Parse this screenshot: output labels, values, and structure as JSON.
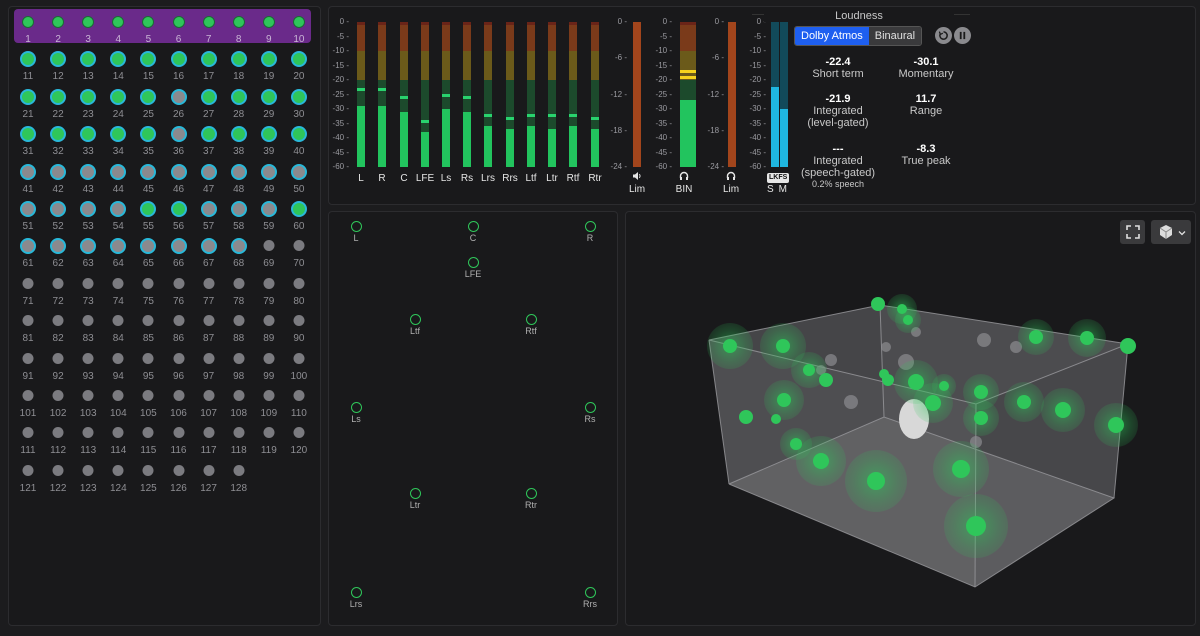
{
  "objects": {
    "selected": [
      1,
      2,
      3,
      4,
      5,
      6,
      7,
      8,
      9,
      10
    ],
    "active_green": [
      11,
      12,
      13,
      14,
      15,
      16,
      17,
      18,
      19,
      20,
      21,
      22,
      23,
      24,
      25,
      27,
      28,
      29,
      30,
      31,
      32,
      33,
      34,
      35,
      36,
      37,
      38,
      39,
      40,
      41,
      42,
      43,
      44,
      45,
      46,
      47,
      48,
      49,
      50,
      51,
      52,
      53,
      54,
      55,
      56,
      57,
      58,
      59,
      60,
      61,
      62,
      63,
      64,
      65,
      66,
      67,
      68
    ],
    "active_grey": [
      26,
      36,
      41,
      42,
      43,
      44,
      45,
      46,
      47,
      48,
      49,
      50,
      51,
      52,
      53,
      54,
      57,
      58,
      59,
      61,
      62,
      63,
      64,
      65,
      66,
      67,
      68
    ],
    "total": 128
  },
  "meters": {
    "scale": [
      "0",
      "-5",
      "-10",
      "-15",
      "-20",
      "-25",
      "-30",
      "-35",
      "-40",
      "-45",
      "-60"
    ],
    "channels": [
      {
        "label": "L",
        "level": -29,
        "peak": -23
      },
      {
        "label": "R",
        "level": -29,
        "peak": -23
      },
      {
        "label": "C",
        "level": -31,
        "peak": -26
      },
      {
        "label": "LFE",
        "level": -38,
        "peak": -34
      },
      {
        "label": "Ls",
        "level": -30,
        "peak": -25
      },
      {
        "label": "Rs",
        "level": -31,
        "peak": -26
      },
      {
        "label": "Lrs",
        "level": -36,
        "peak": -32
      },
      {
        "label": "Rrs",
        "level": -37,
        "peak": -33
      },
      {
        "label": "Ltf",
        "level": -36,
        "peak": -32
      },
      {
        "label": "Ltr",
        "level": -37,
        "peak": -32
      },
      {
        "label": "Rtf",
        "level": -36,
        "peak": -32
      },
      {
        "label": "Rtr",
        "level": -37,
        "peak": -33
      }
    ],
    "lim_scale": [
      "0",
      "-6",
      "-12",
      "-18",
      "-24"
    ],
    "bin_scale": [
      "0",
      "-5",
      "-10",
      "-15",
      "-20",
      "-25",
      "-30",
      "-35",
      "-40",
      "-45",
      "-60"
    ],
    "lim1_label": "Lim",
    "bin_label": "BIN",
    "bin_level": -27,
    "bin_peaks": [
      -17,
      -19
    ],
    "lim2_label": "Lim",
    "lkfs_label": "LKFS",
    "lkfs_s": "S",
    "lkfs_m": "M",
    "lkfs_s_level": -22.4,
    "lkfs_m_level": -30.1
  },
  "loudness": {
    "title": "Loudness",
    "mode_dolby": "Dolby Atmos",
    "mode_binaural": "Binaural",
    "reset_icon": "reset-icon",
    "pause_icon": "pause-icon",
    "short_term": {
      "value": "-22.4",
      "label": "Short term"
    },
    "momentary": {
      "value": "-30.1",
      "label": "Momentary"
    },
    "integrated_level": {
      "value": "-21.9",
      "label1": "Integrated",
      "label2": "(level-gated)"
    },
    "range": {
      "value": "11.7",
      "label": "Range"
    },
    "integrated_speech": {
      "value": "---",
      "label1": "Integrated",
      "label2": "(speech-gated)",
      "sub": "0.2% speech"
    },
    "true_peak": {
      "value": "-8.3",
      "label": "True peak"
    }
  },
  "speakers": [
    {
      "label": "L"
    },
    {
      "label": "C"
    },
    {
      "label": "R"
    },
    {
      "label": "LFE"
    },
    {
      "label": "Ltf"
    },
    {
      "label": "Rtf"
    },
    {
      "label": "Ls"
    },
    {
      "label": "Rs"
    },
    {
      "label": "Ltr"
    },
    {
      "label": "Rtr"
    },
    {
      "label": "Lrs"
    },
    {
      "label": "Rrs"
    }
  ],
  "view": {
    "fullscreen_icon": "fullscreen-icon",
    "cube_icon": "cube-icon",
    "chevron_icon": "chevron-down-icon"
  }
}
